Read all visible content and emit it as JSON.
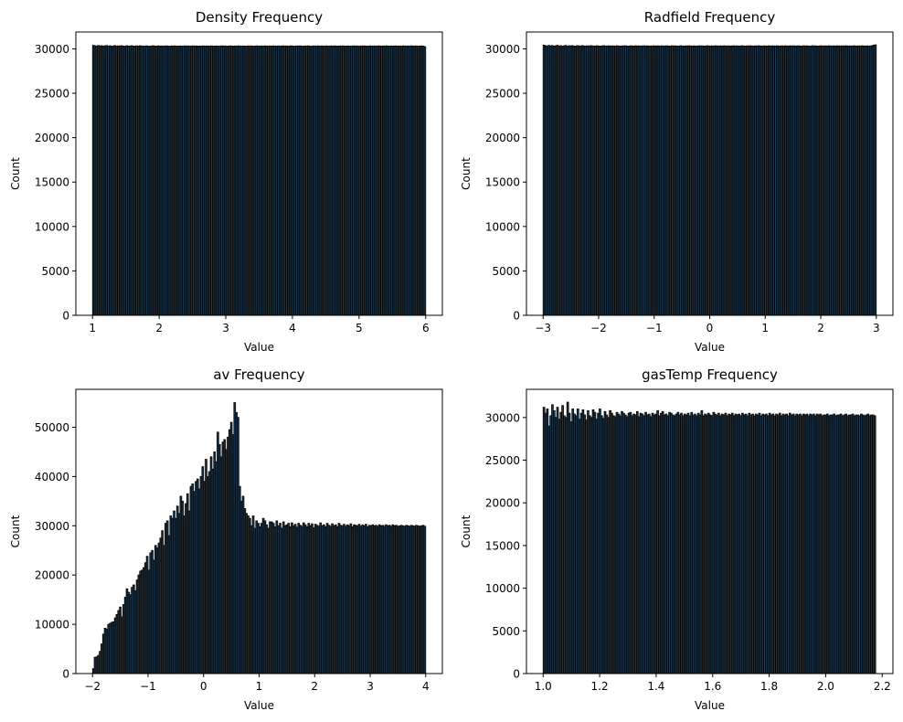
{
  "chart_data": [
    {
      "type": "bar",
      "title": "Density Frequency",
      "xlabel": "Value",
      "ylabel": "Count",
      "xlim": [
        0.75,
        6.25
      ],
      "ylim": [
        0,
        31900
      ],
      "xticks": [
        1,
        2,
        3,
        4,
        5,
        6
      ],
      "xtick_labels": [
        "1",
        "2",
        "3",
        "4",
        "5",
        "6"
      ],
      "yticks": [
        0,
        5000,
        10000,
        15000,
        20000,
        25000,
        30000
      ],
      "ytick_labels": [
        "0",
        "5000",
        "10000",
        "15000",
        "20000",
        "25000",
        "30000"
      ],
      "bin_edges_range": [
        1,
        6
      ],
      "series": [
        {
          "values": [
            30400,
            30350,
            30300,
            30380,
            30320,
            30360,
            30300,
            30340,
            30380,
            30310,
            30350,
            30290,
            30330,
            30370,
            30300,
            30340,
            30320,
            30360,
            30310,
            30290,
            30350,
            30330,
            30300,
            30360,
            30320,
            30300,
            30340,
            30310,
            30350,
            30330,
            30300,
            30320,
            30340,
            30310,
            30300,
            30330,
            30350,
            30320,
            30300,
            30340,
            30310,
            30330,
            30300,
            30320,
            30340,
            30310,
            30300,
            30330,
            30320,
            30340,
            30300,
            30310,
            30330,
            30320,
            30300,
            30340,
            30310,
            30330,
            30300,
            30320,
            30340,
            30310,
            30330,
            30300,
            30320,
            30310,
            30340,
            30300,
            30330,
            30320,
            30310,
            30340,
            30300,
            30320,
            30330,
            30310,
            30300,
            30340,
            30320,
            30330,
            30300,
            30310,
            30340,
            30320,
            30300,
            30330,
            30310,
            30340,
            30320,
            30300,
            30330,
            30310,
            30300,
            30340,
            30320,
            30330,
            30310,
            30300,
            30340,
            30320,
            30310,
            30330,
            30300,
            30340,
            30320,
            30310,
            30330,
            30300,
            30340,
            30320,
            30310,
            30330,
            30300,
            30320,
            30340,
            30310,
            30330,
            30300,
            30320,
            30340,
            30310,
            30300,
            30330,
            30320,
            30340,
            30310,
            30300,
            30330,
            30320,
            30340,
            30310,
            30300,
            30330,
            30320,
            30310,
            30340,
            30300,
            30330,
            30320,
            30310,
            30340,
            30300,
            30320,
            30330,
            30310,
            30340,
            30300,
            30320,
            30330,
            30310,
            30340,
            30300,
            30320,
            30330,
            30310,
            30300,
            30340,
            30320,
            30330,
            30310,
            30300,
            30340,
            30320,
            30330,
            30310,
            30300,
            30340,
            30320,
            30310,
            30330,
            30300,
            30340,
            30320,
            30310,
            30330,
            30300,
            30340,
            30320,
            30310,
            30330,
            30300,
            30340,
            30320,
            30310,
            30330,
            30300,
            30340,
            30320,
            30310,
            30330,
            30300,
            30340,
            30320,
            30310,
            30330,
            30300,
            30320,
            30340,
            30310,
            30250
          ]
        }
      ]
    },
    {
      "type": "bar",
      "title": "Radfield Frequency",
      "xlabel": "Value",
      "ylabel": "Count",
      "xlim": [
        -3.3,
        3.3
      ],
      "ylim": [
        0,
        31900
      ],
      "xticks": [
        -3,
        -2,
        -1,
        0,
        1,
        2,
        3
      ],
      "xtick_labels": [
        "−3",
        "−2",
        "−1",
        "0",
        "1",
        "2",
        "3"
      ],
      "yticks": [
        0,
        5000,
        10000,
        15000,
        20000,
        25000,
        30000
      ],
      "ytick_labels": [
        "0",
        "5000",
        "10000",
        "15000",
        "20000",
        "25000",
        "30000"
      ],
      "bin_edges_range": [
        -3,
        3
      ],
      "series": [
        {
          "values": [
            30420,
            30360,
            30300,
            30400,
            30330,
            30380,
            30310,
            30350,
            30400,
            30320,
            30360,
            30300,
            30340,
            30390,
            30310,
            30350,
            30330,
            30370,
            30320,
            30300,
            30360,
            30340,
            30310,
            30370,
            30330,
            30310,
            30350,
            30320,
            30360,
            30340,
            30310,
            30330,
            30350,
            30320,
            30310,
            30340,
            30360,
            30330,
            30310,
            30350,
            30320,
            30340,
            30310,
            30330,
            30350,
            30320,
            30310,
            30340,
            30330,
            30350,
            30310,
            30320,
            30340,
            30330,
            30310,
            30350,
            30320,
            30340,
            30310,
            30330,
            30350,
            30320,
            30340,
            30310,
            30330,
            30320,
            30350,
            30310,
            30340,
            30330,
            30320,
            30350,
            30310,
            30330,
            30340,
            30320,
            30310,
            30350,
            30330,
            30340,
            30310,
            30320,
            30350,
            30330,
            30310,
            30340,
            30320,
            30350,
            30330,
            30310,
            30340,
            30320,
            30310,
            30350,
            30330,
            30340,
            30320,
            30310,
            30350,
            30330,
            30320,
            30340,
            30310,
            30350,
            30330,
            30320,
            30340,
            30310,
            30350,
            30330,
            30320,
            30340,
            30310,
            30330,
            30350,
            30320,
            30340,
            30310,
            30330,
            30350,
            30320,
            30310,
            30340,
            30330,
            30350,
            30320,
            30310,
            30340,
            30330,
            30350,
            30320,
            30310,
            30340,
            30330,
            30320,
            30350,
            30310,
            30340,
            30330,
            30320,
            30350,
            30310,
            30330,
            30340,
            30320,
            30350,
            30310,
            30330,
            30340,
            30320,
            30350,
            30310,
            30330,
            30340,
            30320,
            30310,
            30350,
            30330,
            30340,
            30320,
            30310,
            30350,
            30330,
            30340,
            30320,
            30310,
            30350,
            30330,
            30320,
            30340,
            30310,
            30350,
            30330,
            30320,
            30340,
            30310,
            30350,
            30330,
            30320,
            30340,
            30310,
            30350,
            30330,
            30320,
            30340,
            30310,
            30350,
            30330,
            30320,
            30340,
            30310,
            30350,
            30330,
            30320,
            30340,
            30310,
            30330,
            30350,
            30420,
            30450
          ]
        }
      ]
    },
    {
      "type": "bar",
      "title": "av Frequency",
      "xlabel": "Value",
      "ylabel": "Count",
      "xlim": [
        -2.3,
        4.3
      ],
      "ylim": [
        0,
        57700
      ],
      "xticks": [
        -2,
        -1,
        0,
        1,
        2,
        3,
        4
      ],
      "xtick_labels": [
        "−2",
        "−1",
        "0",
        "1",
        "2",
        "3",
        "4"
      ],
      "yticks": [
        0,
        10000,
        20000,
        30000,
        40000,
        50000
      ],
      "ytick_labels": [
        "0",
        "10000",
        "20000",
        "30000",
        "40000",
        "50000"
      ],
      "bin_edges_range": [
        -2,
        4
      ],
      "series": [
        {
          "values": [
            1000,
            3300,
            3400,
            3700,
            4500,
            6000,
            8000,
            9200,
            9000,
            10000,
            10200,
            10400,
            10500,
            11300,
            12000,
            12800,
            13500,
            11500,
            14000,
            15500,
            17200,
            16500,
            16000,
            17500,
            18000,
            16800,
            19000,
            20000,
            20800,
            21000,
            21500,
            22500,
            23800,
            21000,
            24500,
            25000,
            23000,
            26000,
            25500,
            26500,
            27500,
            29000,
            26000,
            30500,
            31000,
            28000,
            32000,
            31500,
            33000,
            31500,
            34000,
            32500,
            36000,
            35000,
            32000,
            34500,
            36500,
            33000,
            38000,
            38500,
            37000,
            39000,
            39500,
            37500,
            40000,
            42000,
            39000,
            43500,
            40000,
            41000,
            44000,
            41500,
            45000,
            43000,
            49000,
            46500,
            44000,
            47000,
            47500,
            45500,
            48000,
            49500,
            51000,
            48500,
            55000,
            53000,
            52000,
            38000,
            35000,
            36000,
            33500,
            32500,
            32000,
            31500,
            30000,
            32000,
            29500,
            31000,
            30500,
            29800,
            30500,
            31500,
            31000,
            30200,
            29500,
            30800,
            30800,
            30500,
            29800,
            31000,
            30000,
            30500,
            29500,
            30800,
            30000,
            30200,
            30500,
            29800,
            30600,
            30000,
            30300,
            29700,
            30500,
            30100,
            29900,
            30600,
            30200,
            29800,
            30500,
            30000,
            30400,
            29600,
            30300,
            30100,
            29900,
            30600,
            30000,
            30200,
            29800,
            30500,
            30100,
            29900,
            30400,
            30000,
            30200,
            29800,
            30500,
            30100,
            30000,
            30300,
            29900,
            30200,
            30000,
            30400,
            29800,
            30200,
            30100,
            30000,
            30300,
            29900,
            30200,
            30000,
            30300,
            29800,
            30100,
            30000,
            30200,
            30000,
            30100,
            29900,
            30200,
            30000,
            30100,
            29900,
            30200,
            30000,
            30100,
            29900,
            30200,
            30000,
            30100,
            29900,
            30000,
            30100,
            30000,
            29900,
            30100,
            30000,
            29900,
            30100,
            30000,
            29900,
            30100,
            30000,
            29900,
            30000,
            30100,
            29900
          ]
        }
      ]
    },
    {
      "type": "bar",
      "title": "gasTemp Frequency",
      "xlabel": "Value",
      "ylabel": "Count",
      "xlim": [
        0.941,
        2.238
      ],
      "ylim": [
        0,
        33300
      ],
      "xticks": [
        1.0,
        1.2,
        1.4,
        1.6,
        1.8,
        2.0,
        2.2
      ],
      "xtick_labels": [
        "1.0",
        "1.2",
        "1.4",
        "1.6",
        "1.8",
        "2.0",
        "2.2"
      ],
      "yticks": [
        0,
        5000,
        10000,
        15000,
        20000,
        25000,
        30000
      ],
      "ytick_labels": [
        "0",
        "5000",
        "10000",
        "15000",
        "20000",
        "25000",
        "30000"
      ],
      "bin_edges_range": [
        1.0,
        2.177
      ],
      "series": [
        {
          "values": [
            31200,
            30500,
            31000,
            29000,
            30200,
            31500,
            30800,
            30000,
            31200,
            29800,
            30600,
            31400,
            30200,
            30000,
            31800,
            30500,
            29500,
            31000,
            30400,
            30200,
            31000,
            29800,
            30500,
            30900,
            30300,
            29700,
            30800,
            30200,
            30000,
            30900,
            30600,
            29800,
            30500,
            31000,
            30200,
            29900,
            30700,
            30300,
            30000,
            30800,
            30500,
            30200,
            30100,
            30600,
            30400,
            30200,
            30700,
            30500,
            30300,
            30100,
            30500,
            30600,
            30200,
            30400,
            30300,
            30700,
            30100,
            30500,
            30400,
            30200,
            30600,
            30300,
            30400,
            30100,
            30500,
            30300,
            30400,
            30800,
            30200,
            30500,
            30700,
            30300,
            30400,
            30200,
            30600,
            30500,
            30300,
            30200,
            30400,
            30600,
            30300,
            30500,
            30200,
            30400,
            30300,
            30500,
            30200,
            30600,
            30300,
            30400,
            30200,
            30500,
            30300,
            30800,
            30200,
            30400,
            30300,
            30500,
            30300,
            30200,
            30600,
            30400,
            30300,
            30500,
            30200,
            30400,
            30300,
            30500,
            30200,
            30400,
            30300,
            30500,
            30200,
            30400,
            30300,
            30400,
            30200,
            30500,
            30300,
            30400,
            30200,
            30500,
            30300,
            30400,
            30200,
            30400,
            30300,
            30500,
            30200,
            30400,
            30300,
            30400,
            30200,
            30500,
            30300,
            30400,
            30200,
            30400,
            30300,
            30500,
            30200,
            30400,
            30300,
            30400,
            30200,
            30500,
            30300,
            30400,
            30200,
            30400,
            30300,
            30400,
            30200,
            30400,
            30300,
            30400,
            30200,
            30400,
            30300,
            30400,
            30200,
            30400,
            30300,
            30400,
            30200,
            30300,
            30300,
            30400,
            30200,
            30300,
            30300,
            30400,
            30200,
            30300,
            30300,
            30400,
            30200,
            30300,
            30400,
            30200,
            30300,
            30300,
            30400,
            30200,
            30300,
            30300,
            30200,
            30400,
            30300,
            30200,
            30300,
            30400,
            30200,
            30300,
            30300,
            30200
          ]
        }
      ]
    }
  ],
  "style": {
    "bar_fill": "#1f3a4f",
    "bar_edge": "#000000",
    "axis_color": "#000000"
  }
}
